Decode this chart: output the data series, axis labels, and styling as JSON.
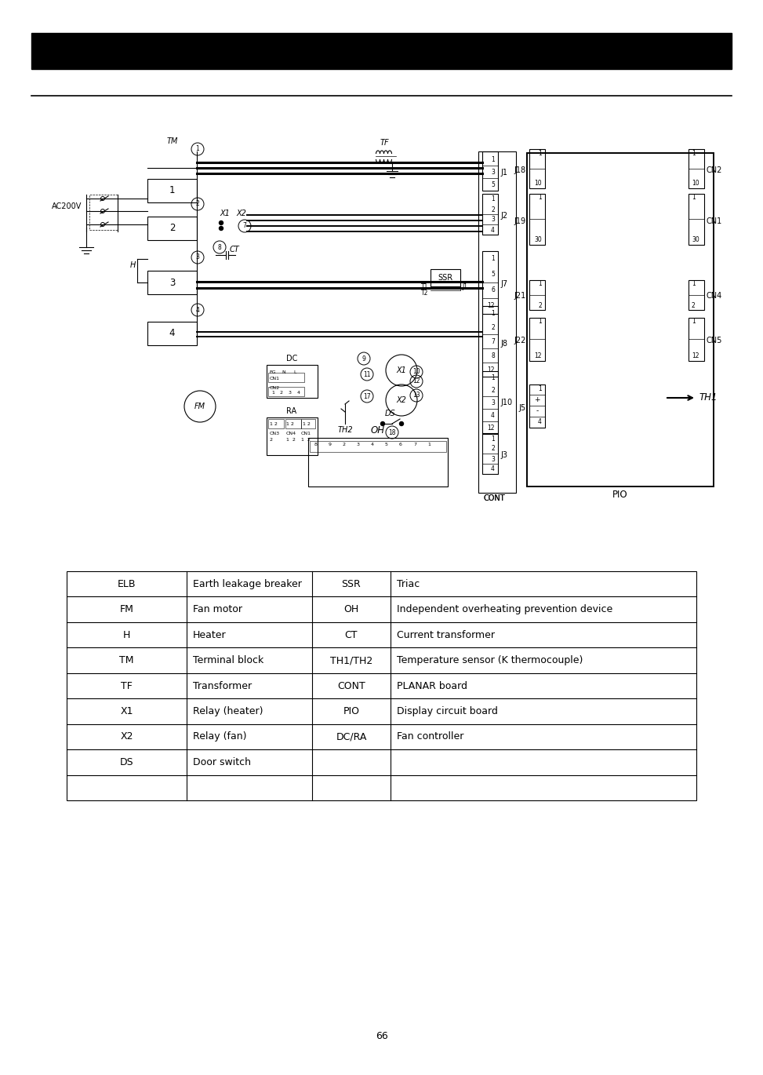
{
  "page_number": "66",
  "table": {
    "left_col": [
      [
        "ELB",
        "Earth leakage breaker"
      ],
      [
        "FM",
        "Fan motor"
      ],
      [
        "H",
        "Heater"
      ],
      [
        "TM",
        "Terminal block"
      ],
      [
        "TF",
        "Transformer"
      ],
      [
        "X1",
        "Relay (heater)"
      ],
      [
        "X2",
        "Relay (fan)"
      ],
      [
        "DS",
        "Door switch"
      ]
    ],
    "right_col": [
      [
        "SSR",
        "Triac"
      ],
      [
        "OH",
        "Independent overheating prevention device"
      ],
      [
        "CT",
        "Current transformer"
      ],
      [
        "TH1/TH2",
        "Temperature sensor (K thermocouple)"
      ],
      [
        "CONT",
        "PLANAR board"
      ],
      [
        "PIO",
        "Display circuit board"
      ],
      [
        "DC/RA",
        "Fan controller"
      ],
      [
        "",
        ""
      ]
    ]
  }
}
